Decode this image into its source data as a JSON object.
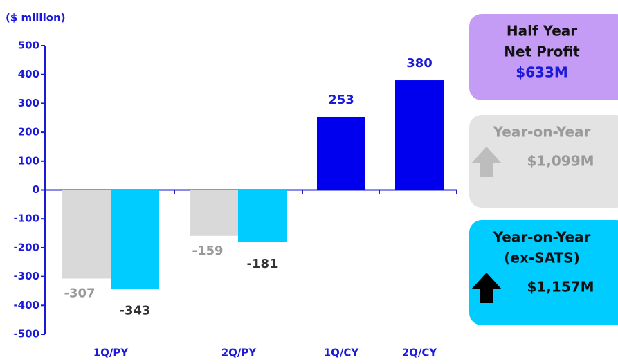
{
  "chart_data": {
    "type": "bar",
    "subtitle": "($ million)",
    "categories": [
      "1Q/PY",
      "2Q/PY",
      "1Q/CY",
      "2Q/CY"
    ],
    "series": [
      {
        "color": "#d9d9d9",
        "label_color": "#999999",
        "values": [
          -307,
          -159,
          null,
          null
        ]
      },
      {
        "color": "#00ccff",
        "label_color": "#333333",
        "values": [
          -343,
          -181,
          null,
          null
        ]
      },
      {
        "color": "#0000ee",
        "label_color": "#1a1ad8",
        "values": [
          null,
          null,
          253,
          380
        ]
      }
    ],
    "ylim": [
      -500,
      500
    ],
    "yticks": [
      -500,
      -400,
      -300,
      -200,
      -100,
      0,
      100,
      200,
      300,
      400,
      500
    ],
    "axis_color": "#1a1ad8"
  },
  "panels": [
    {
      "lines": [
        "Half Year",
        "Net Profit"
      ],
      "value": "$633M",
      "color": "#c49cf5",
      "text_color": "#111111",
      "value_color": "#1a1ad8"
    },
    {
      "lines": [
        "Year-on-Year"
      ],
      "value": "$1,099M",
      "color": "#e3e3e3",
      "text_color": "#9a9a9a",
      "value_color": "#9a9a9a",
      "arrow_color": "#bdbdbd"
    },
    {
      "lines": [
        "Year-on-Year",
        "(ex-SATS)"
      ],
      "value": "$1,157M",
      "color": "#00ccff",
      "text_color": "#111111",
      "value_color": "#111111",
      "arrow_color": "#000000"
    }
  ]
}
